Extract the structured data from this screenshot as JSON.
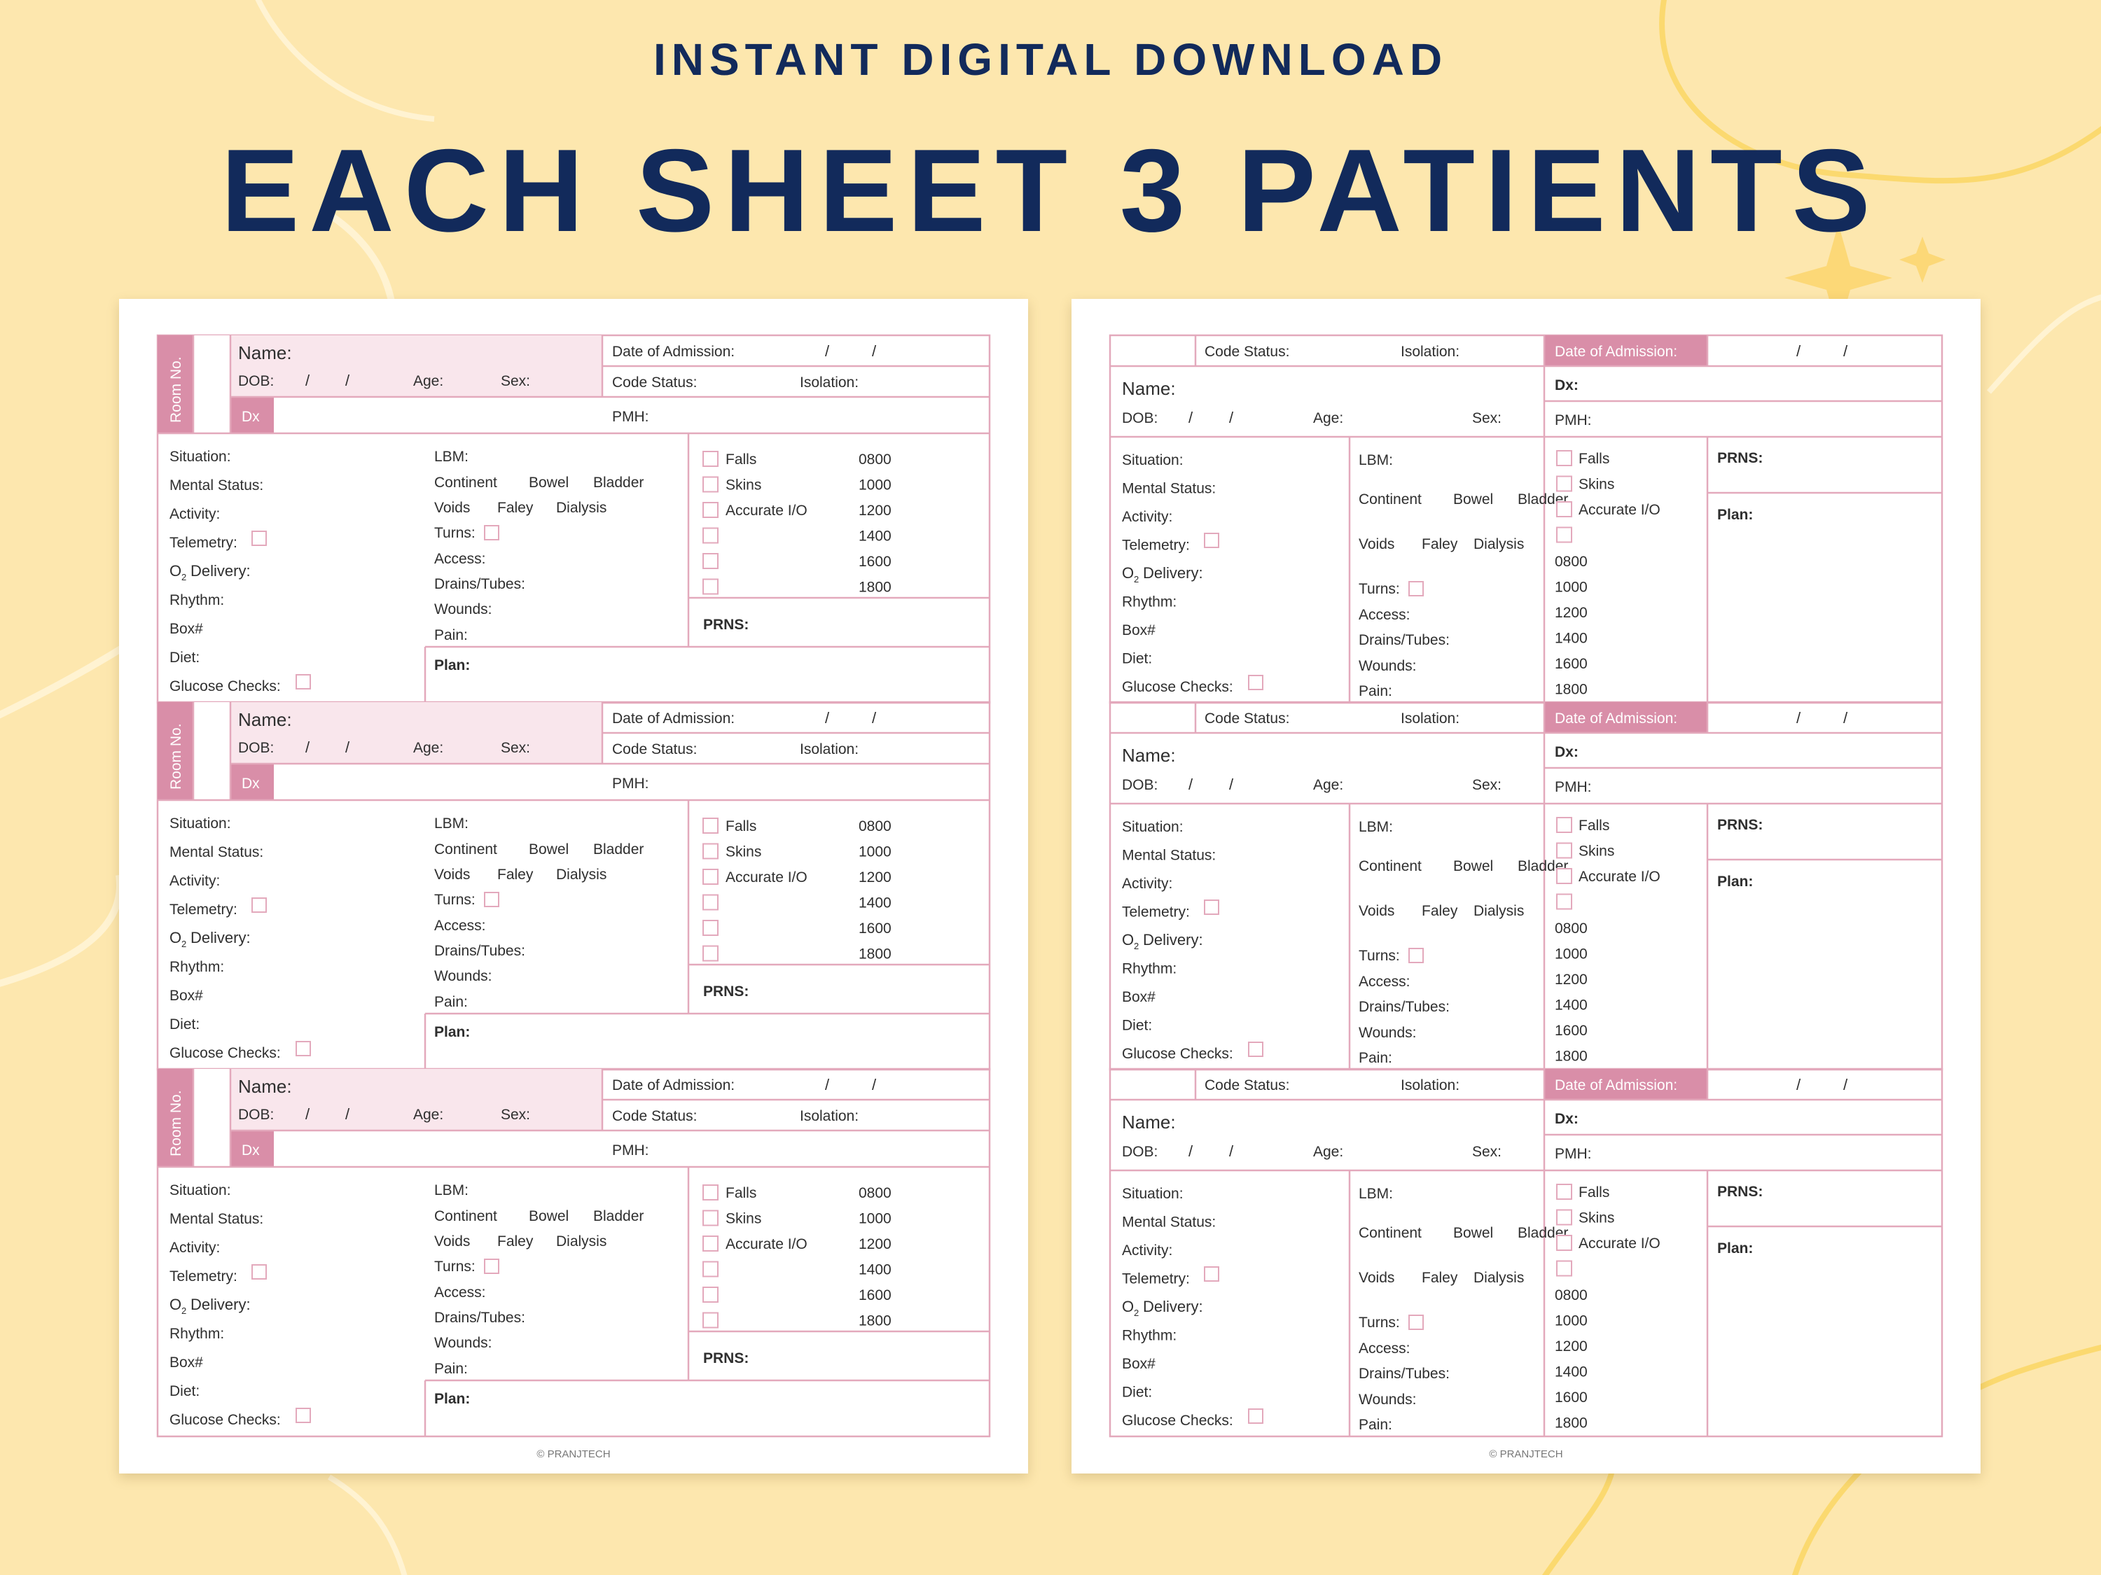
{
  "header": {
    "subtitle": "INSTANT DIGITAL DOWNLOAD",
    "title": "EACH SHEET 3 PATIENTS"
  },
  "colors": {
    "background": "#fde7ae",
    "title": "#122a5b",
    "pink": "#e3a9bc",
    "pink_dark": "#d98ea8",
    "pink_light": "#f9e6ec",
    "paper": "#ffffff"
  },
  "footer": "© PRANJTECH",
  "labels": {
    "room_no": "Room No.",
    "name": "Name:",
    "dob": "DOB:",
    "age": "Age:",
    "sex": "Sex:",
    "date_of_admission": "Date of Admission:",
    "code_status": "Code Status:",
    "isolation": "Isolation:",
    "dx": "Dx",
    "dx_colon": "Dx:",
    "pmh": "PMH:",
    "situation": "Situation:",
    "mental_status": "Mental Status:",
    "activity": "Activity:",
    "telemetry": "Telemetry:",
    "o2_delivery": "Delivery:",
    "rhythm": "Rhythm:",
    "box": "Box#",
    "diet": "Diet:",
    "glucose_checks": "Glucose Checks:",
    "lbm": "LBM:",
    "continent": "Continent",
    "bowel": "Bowel",
    "bladder": "Bladder",
    "voids": "Voids",
    "faley": "Faley",
    "dialysis": "Dialysis",
    "turns": "Turns:",
    "access": "Access:",
    "drains_tubes": "Drains/Tubes:",
    "wounds": "Wounds:",
    "pain": "Pain:",
    "falls": "Falls",
    "skins": "Skins",
    "accurate_io": "Accurate I/O",
    "prns": "PRNS:",
    "plan": "Plan:",
    "slash": "/"
  },
  "times": [
    "0800",
    "1000",
    "1200",
    "1400",
    "1600",
    "1800"
  ],
  "sheets": [
    {
      "name": "sheet-left",
      "patients": 3
    },
    {
      "name": "sheet-right",
      "patients": 3
    }
  ]
}
